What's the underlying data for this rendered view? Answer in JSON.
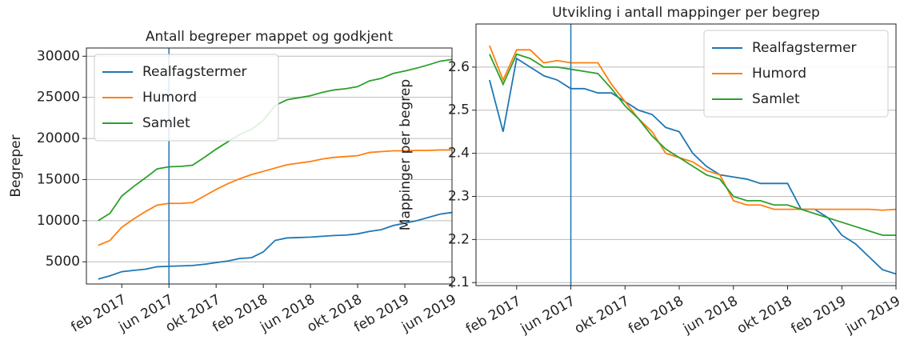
{
  "chart_data": [
    {
      "type": "line",
      "title": "Antall begreper mappet og godkjent",
      "y_label": "Begreper",
      "x": [
        "2016-12",
        "2017-01",
        "2017-02",
        "2017-03",
        "2017-04",
        "2017-05",
        "2017-06",
        "2017-07",
        "2017-08",
        "2017-09",
        "2017-10",
        "2017-11",
        "2017-12",
        "2018-01",
        "2018-02",
        "2018-03",
        "2018-04",
        "2018-05",
        "2018-06",
        "2018-07",
        "2018-08",
        "2018-09",
        "2018-10",
        "2018-11",
        "2018-12",
        "2019-01",
        "2019-02",
        "2019-03",
        "2019-04",
        "2019-05",
        "2019-06"
      ],
      "series": [
        {
          "name": "Realfagstermer",
          "color": "#1f77b4",
          "values": [
            2900,
            3300,
            3800,
            3950,
            4100,
            4400,
            4450,
            4500,
            4550,
            4700,
            4900,
            5100,
            5400,
            5500,
            6200,
            7600,
            7900,
            7950,
            8000,
            8100,
            8200,
            8250,
            8400,
            8700,
            8900,
            9400,
            9700,
            10000,
            10400,
            10800,
            11000
          ]
        },
        {
          "name": "Humord",
          "color": "#ff7f0e",
          "values": [
            7000,
            7600,
            9200,
            10200,
            11100,
            11900,
            12100,
            12100,
            12200,
            13000,
            13800,
            14500,
            15100,
            15600,
            16000,
            16400,
            16800,
            17000,
            17200,
            17500,
            17700,
            17800,
            17900,
            18300,
            18400,
            18500,
            18500,
            18550,
            18550,
            18600,
            18600
          ]
        },
        {
          "name": "Samlet",
          "color": "#2ca02c",
          "values": [
            10000,
            10900,
            13000,
            14150,
            15200,
            16300,
            16550,
            16600,
            16750,
            17700,
            18700,
            19600,
            20500,
            21100,
            22200,
            24000,
            24700,
            24950,
            25200,
            25600,
            25900,
            26050,
            26300,
            27000,
            27300,
            27900,
            28200,
            28550,
            28950,
            29400,
            29600
          ]
        }
      ],
      "xlim": [
        "2016-11",
        "2019-06"
      ],
      "xticks": [
        {
          "value": "2017-02",
          "label": "feb 2017"
        },
        {
          "value": "2017-06",
          "label": "jun 2017"
        },
        {
          "value": "2017-10",
          "label": "okt 2017"
        },
        {
          "value": "2018-02",
          "label": "feb 2018"
        },
        {
          "value": "2018-06",
          "label": "jun 2018"
        },
        {
          "value": "2018-10",
          "label": "okt 2018"
        },
        {
          "value": "2019-02",
          "label": "feb 2019"
        },
        {
          "value": "2019-06",
          "label": "jun 2019"
        }
      ],
      "ylim": [
        2300,
        31000
      ],
      "yticks": [
        5000,
        10000,
        15000,
        20000,
        25000,
        30000
      ],
      "reference_x": "2017-06",
      "reference_color": "#1f77b4",
      "grid": true,
      "legend": "upper left"
    },
    {
      "type": "line",
      "title": "Utvikling i antall mappinger per begrep",
      "y_label": "Mappinger per begrep",
      "x": [
        "2016-12",
        "2017-01",
        "2017-02",
        "2017-03",
        "2017-04",
        "2017-05",
        "2017-06",
        "2017-07",
        "2017-08",
        "2017-09",
        "2017-10",
        "2017-11",
        "2017-12",
        "2018-01",
        "2018-02",
        "2018-03",
        "2018-04",
        "2018-05",
        "2018-06",
        "2018-07",
        "2018-08",
        "2018-09",
        "2018-10",
        "2018-11",
        "2018-12",
        "2019-01",
        "2019-02",
        "2019-03",
        "2019-04",
        "2019-05",
        "2019-06"
      ],
      "series": [
        {
          "name": "Realfagstermer",
          "color": "#1f77b4",
          "values": [
            2.57,
            2.45,
            2.62,
            2.6,
            2.58,
            2.57,
            2.55,
            2.55,
            2.54,
            2.54,
            2.52,
            2.5,
            2.49,
            2.46,
            2.45,
            2.4,
            2.37,
            2.35,
            2.345,
            2.34,
            2.33,
            2.33,
            2.33,
            2.27,
            2.27,
            2.25,
            2.21,
            2.19,
            2.16,
            2.13,
            2.12
          ]
        },
        {
          "name": "Humord",
          "color": "#ff7f0e",
          "values": [
            2.65,
            2.57,
            2.64,
            2.64,
            2.61,
            2.615,
            2.61,
            2.61,
            2.61,
            2.56,
            2.52,
            2.48,
            2.45,
            2.4,
            2.39,
            2.38,
            2.36,
            2.35,
            2.29,
            2.28,
            2.28,
            2.27,
            2.27,
            2.27,
            2.27,
            2.27,
            2.27,
            2.27,
            2.27,
            2.268,
            2.27
          ]
        },
        {
          "name": "Samlet",
          "color": "#2ca02c",
          "values": [
            2.63,
            2.56,
            2.63,
            2.62,
            2.6,
            2.6,
            2.595,
            2.59,
            2.585,
            2.55,
            2.51,
            2.48,
            2.44,
            2.41,
            2.39,
            2.37,
            2.35,
            2.34,
            2.3,
            2.29,
            2.29,
            2.28,
            2.28,
            2.27,
            2.26,
            2.25,
            2.24,
            2.23,
            2.22,
            2.21,
            2.21
          ]
        }
      ],
      "xlim": [
        "2016-11",
        "2019-06"
      ],
      "xticks": [
        {
          "value": "2017-02",
          "label": "feb 2017"
        },
        {
          "value": "2017-06",
          "label": "jun 2017"
        },
        {
          "value": "2017-10",
          "label": "okt 2017"
        },
        {
          "value": "2018-02",
          "label": "feb 2018"
        },
        {
          "value": "2018-06",
          "label": "jun 2018"
        },
        {
          "value": "2018-10",
          "label": "okt 2018"
        },
        {
          "value": "2019-02",
          "label": "feb 2019"
        },
        {
          "value": "2019-06",
          "label": "jun 2019"
        }
      ],
      "ylim": [
        2.093,
        2.7
      ],
      "yticks": [
        2.1,
        2.2,
        2.3,
        2.4,
        2.5,
        2.6
      ],
      "reference_x": "2017-06",
      "reference_color": "#1f77b4",
      "grid": true,
      "legend": "upper right"
    }
  ]
}
